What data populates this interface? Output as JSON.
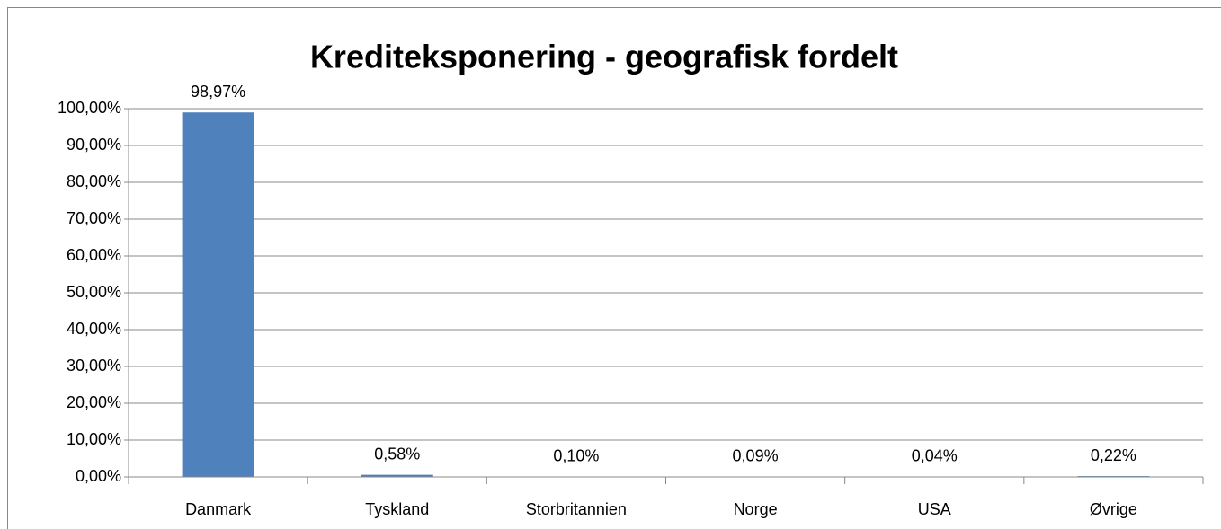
{
  "chart_data": {
    "type": "bar",
    "title": "Krediteksponering - geografisk fordelt",
    "categories": [
      "Danmark",
      "Tyskland",
      "Storbritannien",
      "Norge",
      "USA",
      "Øvrige"
    ],
    "values": [
      98.97,
      0.58,
      0.1,
      0.09,
      0.04,
      0.22
    ],
    "value_labels": [
      "98,97%",
      "0,58%",
      "0,10%",
      "0,09%",
      "0,04%",
      "0,22%"
    ],
    "color": "#4f81bd",
    "ylim": [
      0,
      100
    ],
    "yticks": [
      {
        "value": 0,
        "label": "0,00%"
      },
      {
        "value": 10,
        "label": "10,00%"
      },
      {
        "value": 20,
        "label": "20,00%"
      },
      {
        "value": 30,
        "label": "30,00%"
      },
      {
        "value": 40,
        "label": "40,00%"
      },
      {
        "value": 50,
        "label": "50,00%"
      },
      {
        "value": 60,
        "label": "60,00%"
      },
      {
        "value": 70,
        "label": "70,00%"
      },
      {
        "value": 80,
        "label": "80,00%"
      },
      {
        "value": 90,
        "label": "90,00%"
      },
      {
        "value": 100,
        "label": "100,00%"
      }
    ],
    "grid": true
  }
}
